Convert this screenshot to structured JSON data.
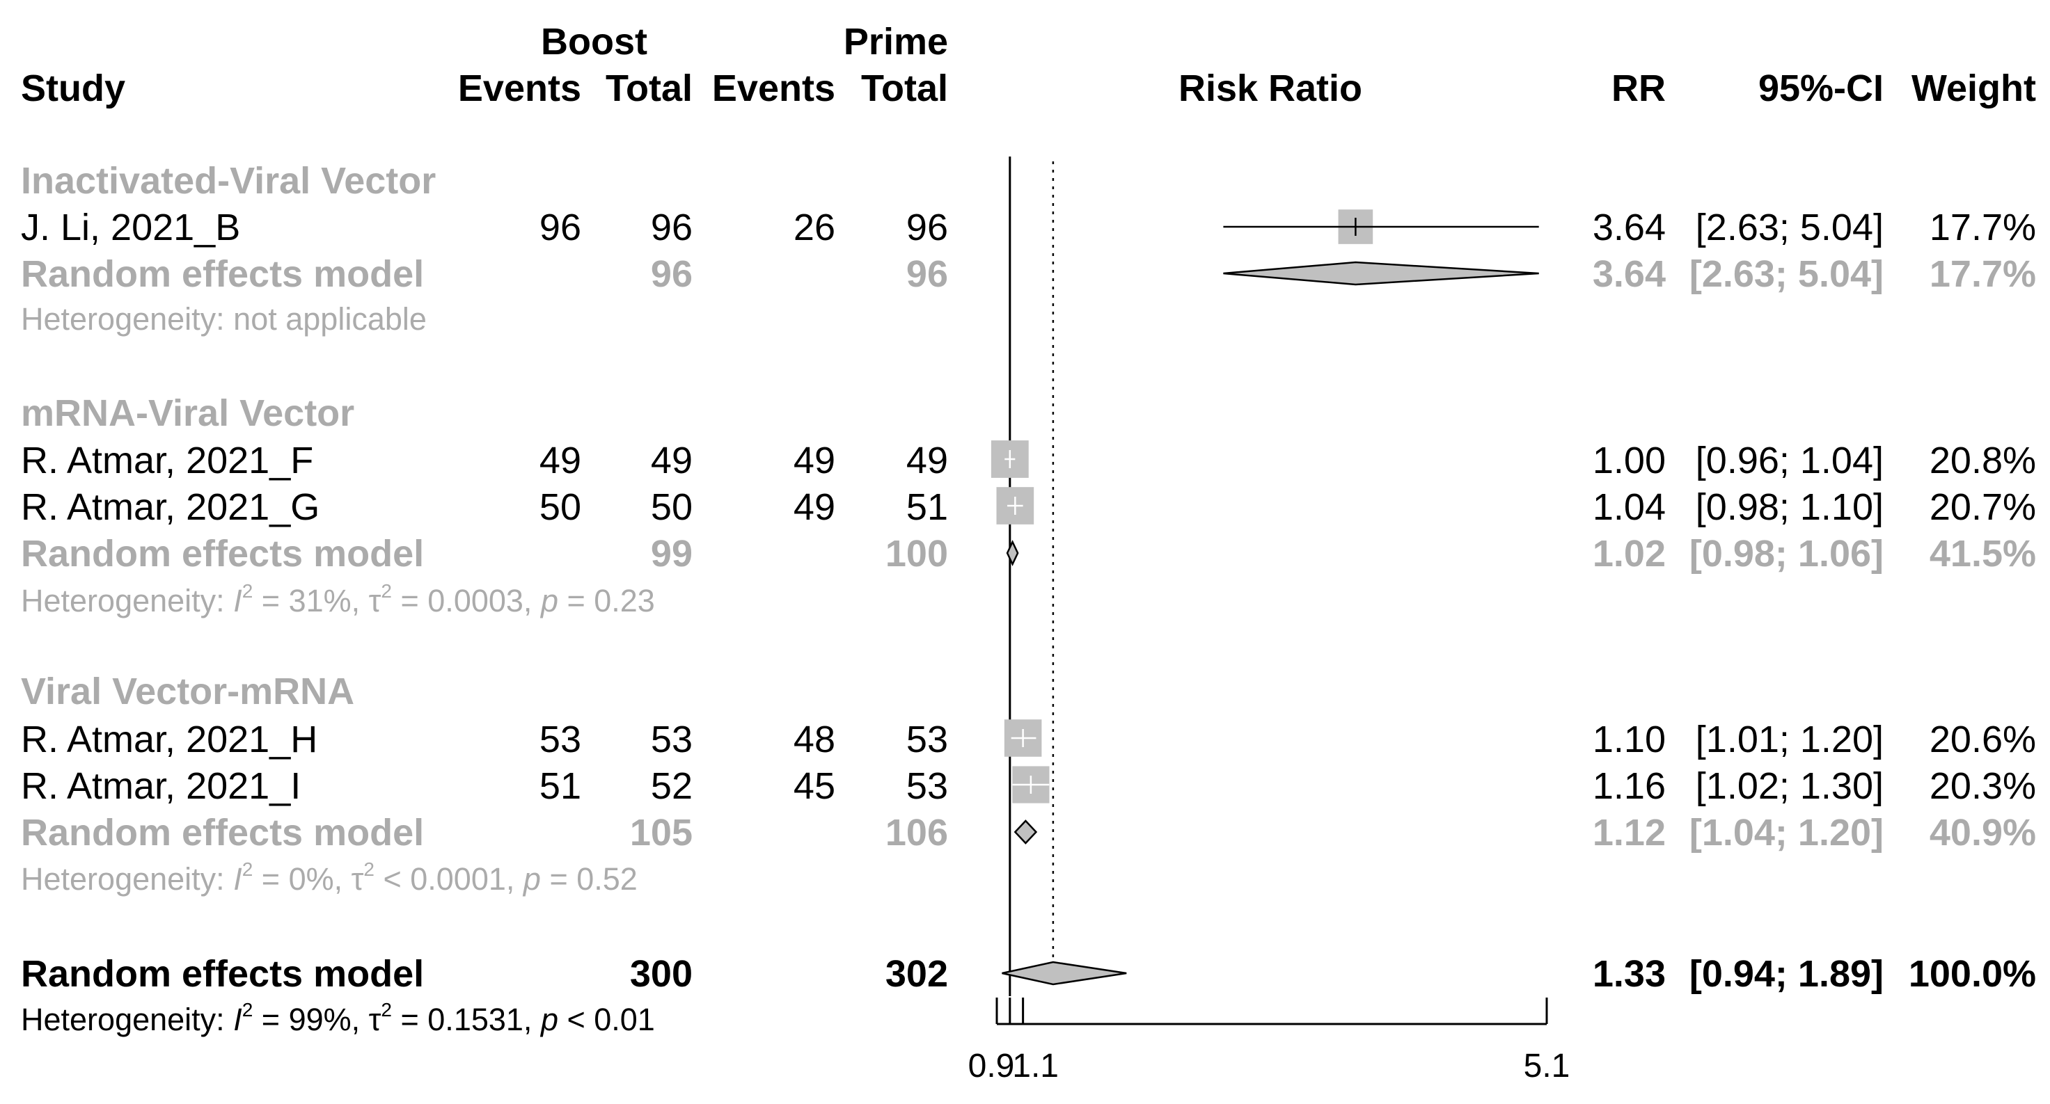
{
  "headers": {
    "study": "Study",
    "boost": "Boost",
    "prime": "Prime",
    "events": "Events",
    "total": "Total",
    "risk_ratio": "Risk Ratio",
    "rr": "RR",
    "ci": "95%-CI",
    "weight": "Weight"
  },
  "groups": [
    {
      "name": "Inactivated-Viral Vector",
      "studies": [
        {
          "study": "J. Li, 2021_B",
          "boost_events": "96",
          "boost_total": "96",
          "prime_events": "26",
          "prime_total": "96",
          "rr": "3.64",
          "ci": "[2.63; 5.04]",
          "weight": "17.7%"
        }
      ],
      "summary": {
        "label": "Random effects model",
        "boost_total": "96",
        "prime_total": "96",
        "rr": "3.64",
        "ci": "[2.63; 5.04]",
        "weight": "17.7%"
      },
      "heterogeneity": {
        "text": "Heterogeneity: not applicable"
      }
    },
    {
      "name": "mRNA-Viral Vector",
      "studies": [
        {
          "study": "R. Atmar, 2021_F",
          "boost_events": "49",
          "boost_total": "49",
          "prime_events": "49",
          "prime_total": "49",
          "rr": "1.00",
          "ci": "[0.96; 1.04]",
          "weight": "20.8%"
        },
        {
          "study": "R. Atmar, 2021_G",
          "boost_events": "50",
          "boost_total": "50",
          "prime_events": "49",
          "prime_total": "51",
          "rr": "1.04",
          "ci": "[0.98; 1.10]",
          "weight": "20.7%"
        }
      ],
      "summary": {
        "label": "Random effects model",
        "boost_total": "99",
        "prime_total": "100",
        "rr": "1.02",
        "ci": "[0.98; 1.06]",
        "weight": "41.5%"
      },
      "heterogeneity": {
        "prefix": "Heterogeneity: ",
        "i2_sym": "I",
        "i2": " = 31%, ",
        "tau_sym": "τ",
        "tau": " = 0.0003, ",
        "p_sym": "p",
        "p": " = 0.23"
      }
    },
    {
      "name": "Viral Vector-mRNA",
      "studies": [
        {
          "study": "R. Atmar, 2021_H",
          "boost_events": "53",
          "boost_total": "53",
          "prime_events": "48",
          "prime_total": "53",
          "rr": "1.10",
          "ci": "[1.01; 1.20]",
          "weight": "20.6%"
        },
        {
          "study": "R. Atmar, 2021_I",
          "boost_events": "51",
          "boost_total": "52",
          "prime_events": "45",
          "prime_total": "53",
          "rr": "1.16",
          "ci": "[1.02; 1.30]",
          "weight": "20.3%"
        }
      ],
      "summary": {
        "label": "Random effects model",
        "boost_total": "105",
        "prime_total": "106",
        "rr": "1.12",
        "ci": "[1.04; 1.20]",
        "weight": "40.9%"
      },
      "heterogeneity": {
        "prefix": "Heterogeneity: ",
        "i2_sym": "I",
        "i2": " = 0%, ",
        "tau_sym": "τ",
        "tau": " < 0.0001, ",
        "p_sym": "p",
        "p": " = 0.52"
      }
    }
  ],
  "overall": {
    "label": "Random effects model",
    "boost_total": "300",
    "prime_total": "302",
    "rr": "1.33",
    "ci": "[0.94; 1.89]",
    "weight": "100.0%",
    "heterogeneity": {
      "prefix": "Heterogeneity: ",
      "i2_sym": "I",
      "i2": " = 99%, ",
      "tau_sym": "τ",
      "tau": " = 0.1531, ",
      "p_sym": "p",
      "p": " < 0.01"
    }
  },
  "chart_data": {
    "type": "forest",
    "xlabel": "Risk Ratio",
    "axis_min": 0.9,
    "axis_max": 5.1,
    "axis_ticks": [
      0.9,
      1.1,
      5.1
    ],
    "tick_labels": [
      "0.9",
      "1.1",
      "5.1"
    ],
    "reference_line": 1,
    "overall_effect_line": 1.33,
    "studies": [
      {
        "name": "J. Li, 2021_B",
        "rr": 3.64,
        "lower": 2.63,
        "upper": 5.04,
        "weight": 17.7
      },
      {
        "name": "R. Atmar, 2021_F",
        "rr": 1.0,
        "lower": 0.96,
        "upper": 1.04,
        "weight": 20.8
      },
      {
        "name": "R. Atmar, 2021_G",
        "rr": 1.04,
        "lower": 0.98,
        "upper": 1.1,
        "weight": 20.7
      },
      {
        "name": "R. Atmar, 2021_H",
        "rr": 1.1,
        "lower": 1.01,
        "upper": 1.2,
        "weight": 20.6
      },
      {
        "name": "R. Atmar, 2021_I",
        "rr": 1.16,
        "lower": 1.02,
        "upper": 1.3,
        "weight": 20.3
      }
    ],
    "subgroup_summaries": [
      {
        "name": "Inactivated-Viral Vector",
        "rr": 3.64,
        "lower": 2.63,
        "upper": 5.04
      },
      {
        "name": "mRNA-Viral Vector",
        "rr": 1.02,
        "lower": 0.98,
        "upper": 1.06
      },
      {
        "name": "Viral Vector-mRNA",
        "rr": 1.12,
        "lower": 1.04,
        "upper": 1.2
      }
    ],
    "overall": {
      "rr": 1.33,
      "lower": 0.94,
      "upper": 1.89
    }
  }
}
